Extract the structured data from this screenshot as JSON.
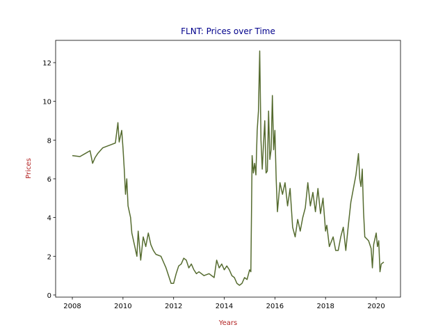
{
  "chart_data": {
    "type": "line",
    "title": "FLNT: Prices over Time",
    "x_label": "Years",
    "y_label": "Prices",
    "xlim": [
      2007.34,
      2020.96
    ],
    "ylim": [
      -0.11,
      13.15
    ],
    "xticks": [
      2008,
      2010,
      2012,
      2014,
      2016,
      2018,
      2020
    ],
    "yticks": [
      0,
      2,
      4,
      6,
      8,
      10,
      12
    ],
    "x": [
      2008.0,
      2008.3,
      2008.5,
      2008.7,
      2008.8,
      2008.9,
      2009.0,
      2009.2,
      2009.5,
      2009.7,
      2009.8,
      2009.85,
      2009.95,
      2010.0,
      2010.05,
      2010.1,
      2010.15,
      2010.2,
      2010.3,
      2010.35,
      2010.45,
      2010.55,
      2010.6,
      2010.7,
      2010.8,
      2010.9,
      2011.0,
      2011.1,
      2011.2,
      2011.3,
      2011.5,
      2011.6,
      2011.7,
      2011.8,
      2011.9,
      2012.0,
      2012.1,
      2012.2,
      2012.3,
      2012.4,
      2012.5,
      2012.6,
      2012.7,
      2012.8,
      2012.9,
      2013.0,
      2013.2,
      2013.4,
      2013.5,
      2013.6,
      2013.7,
      2013.8,
      2013.9,
      2014.0,
      2014.1,
      2014.2,
      2014.3,
      2014.4,
      2014.5,
      2014.6,
      2014.7,
      2014.8,
      2014.9,
      2015.0,
      2015.05,
      2015.1,
      2015.15,
      2015.2,
      2015.25,
      2015.3,
      2015.35,
      2015.4,
      2015.45,
      2015.5,
      2015.55,
      2015.6,
      2015.65,
      2015.7,
      2015.75,
      2015.8,
      2015.85,
      2015.9,
      2015.95,
      2016.0,
      2016.05,
      2016.1,
      2016.2,
      2016.3,
      2016.4,
      2016.5,
      2016.6,
      2016.7,
      2016.8,
      2016.9,
      2017.0,
      2017.1,
      2017.2,
      2017.3,
      2017.4,
      2017.5,
      2017.6,
      2017.7,
      2017.8,
      2017.9,
      2018.0,
      2018.05,
      2018.15,
      2018.3,
      2018.4,
      2018.5,
      2018.6,
      2018.7,
      2018.8,
      2018.9,
      2019.0,
      2019.1,
      2019.2,
      2019.3,
      2019.35,
      2019.4,
      2019.45,
      2019.5,
      2019.55,
      2019.7,
      2019.8,
      2019.85,
      2019.9,
      2020.0,
      2020.05,
      2020.1,
      2020.15,
      2020.2,
      2020.3
    ],
    "series": [
      {
        "color": "#556b2f",
        "values": [
          7.2,
          7.15,
          7.3,
          7.45,
          6.8,
          7.1,
          7.3,
          7.6,
          7.75,
          7.85,
          8.9,
          7.9,
          8.5,
          7.6,
          6.5,
          5.2,
          6.0,
          4.6,
          4.0,
          3.2,
          2.6,
          2.0,
          3.3,
          1.8,
          3.0,
          2.5,
          3.2,
          2.6,
          2.3,
          2.1,
          2.0,
          1.7,
          1.4,
          1.0,
          0.6,
          0.6,
          1.1,
          1.5,
          1.6,
          1.9,
          1.8,
          1.4,
          1.6,
          1.3,
          1.1,
          1.2,
          1.0,
          1.1,
          1.0,
          0.9,
          1.8,
          1.4,
          1.6,
          1.3,
          1.5,
          1.3,
          1.0,
          0.9,
          0.6,
          0.5,
          0.6,
          0.9,
          0.8,
          1.3,
          1.2,
          7.2,
          6.3,
          6.8,
          6.2,
          8.5,
          9.5,
          12.6,
          8.0,
          6.5,
          7.8,
          9.0,
          6.3,
          6.4,
          9.5,
          7.0,
          7.5,
          10.3,
          7.5,
          8.5,
          6.0,
          4.3,
          5.8,
          5.2,
          5.8,
          4.6,
          5.5,
          3.5,
          3.0,
          3.9,
          3.3,
          4.0,
          4.5,
          5.8,
          4.6,
          5.3,
          4.3,
          5.5,
          4.2,
          5.0,
          3.3,
          3.6,
          2.5,
          3.0,
          2.3,
          2.3,
          3.0,
          3.5,
          2.3,
          3.6,
          4.8,
          5.5,
          6.2,
          7.3,
          6.0,
          5.6,
          6.5,
          4.3,
          3.0,
          2.8,
          2.4,
          1.4,
          2.6,
          3.2,
          2.5,
          2.8,
          1.2,
          1.6,
          1.7
        ]
      }
    ]
  }
}
